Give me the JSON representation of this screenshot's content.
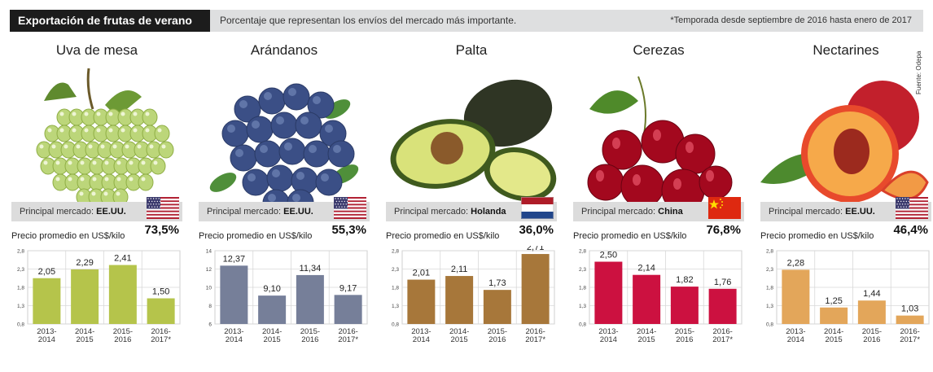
{
  "header": {
    "title": "Exportación de frutas de verano",
    "subtitle": "Porcentaje que representan los envíos del mercado más importante.",
    "note": "*Temporada desde septiembre de 2016 hasta enero de 2017"
  },
  "source_note": "Fuente: Odepa",
  "panels": [
    {
      "fruit": "Uva de mesa",
      "market_label": "Principal mercado:",
      "market": "EE.UU.",
      "flag": "usa-flag-icon",
      "share": "73,5%",
      "price_label": "Precio promedio en US$/kilo",
      "icon": "grapes-image",
      "color": "#b5c44b"
    },
    {
      "fruit": "Arándanos",
      "market_label": "Principal mercado:",
      "market": "EE.UU.",
      "flag": "usa-flag-icon",
      "share": "55,3%",
      "price_label": "Precio promedio en US$/kilo",
      "icon": "blueberries-image",
      "color": "#767f99"
    },
    {
      "fruit": "Palta",
      "market_label": "Principal mercado:",
      "market": "Holanda",
      "flag": "netherlands-flag-icon",
      "share": "36,0%",
      "price_label": "Precio promedio en US$/kilo",
      "icon": "avocado-image",
      "color": "#a7773a"
    },
    {
      "fruit": "Cerezas",
      "market_label": "Principal mercado:",
      "market": "China",
      "flag": "china-flag-icon",
      "share": "76,8%",
      "price_label": "Precio promedio en US$/kilo",
      "icon": "cherries-image",
      "color": "#cc1140"
    },
    {
      "fruit": "Nectarines",
      "market_label": "Principal mercado:",
      "market": "EE.UU.",
      "flag": "usa-flag-icon",
      "share": "46,4%",
      "price_label": "Precio promedio en US$/kilo",
      "icon": "nectarines-image",
      "color": "#e3a65a"
    }
  ],
  "chart_data": [
    {
      "type": "bar",
      "categories": [
        "2013-2014",
        "2014-2015",
        "2015-2016",
        "2016-2017*"
      ],
      "category_lines": [
        [
          "2013-",
          "2014"
        ],
        [
          "2014-",
          "2015"
        ],
        [
          "2015-",
          "2016"
        ],
        [
          "2016-",
          "2017*"
        ]
      ],
      "values": [
        2.05,
        2.29,
        2.41,
        1.5
      ],
      "value_labels": [
        "2,05",
        "2,29",
        "2,41",
        "1,50"
      ],
      "ylim": [
        0.8,
        2.8
      ],
      "yticks": [
        0.8,
        1.3,
        1.8,
        2.3,
        2.8
      ],
      "ytick_labels": [
        "0,8",
        "1,3",
        "1,8",
        "2,3",
        "2,8"
      ],
      "grid": true
    },
    {
      "type": "bar",
      "categories": [
        "2013-2014",
        "2014-2015",
        "2015-2016",
        "2016-2017*"
      ],
      "category_lines": [
        [
          "2013-",
          "2014"
        ],
        [
          "2014-",
          "2015"
        ],
        [
          "2015-",
          "2016"
        ],
        [
          "2016-",
          "2017*"
        ]
      ],
      "values": [
        12.37,
        9.1,
        11.34,
        9.17
      ],
      "value_labels": [
        "12,37",
        "9,10",
        "11,34",
        "9,17"
      ],
      "ylim": [
        6,
        14
      ],
      "yticks": [
        6,
        8,
        10,
        12,
        14
      ],
      "ytick_labels": [
        "6",
        "8",
        "10",
        "12",
        "14"
      ],
      "grid": true
    },
    {
      "type": "bar",
      "categories": [
        "2013-2014",
        "2014-2015",
        "2015-2016",
        "2016-2017*"
      ],
      "category_lines": [
        [
          "2013-",
          "2014"
        ],
        [
          "2014-",
          "2015"
        ],
        [
          "2015-",
          "2016"
        ],
        [
          "2016-",
          "2017*"
        ]
      ],
      "values": [
        2.01,
        2.11,
        1.73,
        2.71
      ],
      "value_labels": [
        "2,01",
        "2,11",
        "1,73",
        "2,71"
      ],
      "ylim": [
        0.8,
        2.8
      ],
      "yticks": [
        0.8,
        1.3,
        1.8,
        2.3,
        2.8
      ],
      "ytick_labels": [
        "0,8",
        "1,3",
        "1,8",
        "2,3",
        "2,8"
      ],
      "grid": true
    },
    {
      "type": "bar",
      "categories": [
        "2013-2014",
        "2014-2015",
        "2015-2016",
        "2016-2017*"
      ],
      "category_lines": [
        [
          "2013-",
          "2014"
        ],
        [
          "2014-",
          "2015"
        ],
        [
          "2015-",
          "2016"
        ],
        [
          "2016-",
          "2017*"
        ]
      ],
      "values": [
        2.5,
        2.14,
        1.82,
        1.76
      ],
      "value_labels": [
        "2,50",
        "2,14",
        "1,82",
        "1,76"
      ],
      "ylim": [
        0.8,
        2.8
      ],
      "yticks": [
        0.8,
        1.3,
        1.8,
        2.3,
        2.8
      ],
      "ytick_labels": [
        "0,8",
        "1,3",
        "1,8",
        "2,3",
        "2,8"
      ],
      "grid": true
    },
    {
      "type": "bar",
      "categories": [
        "2013-2014",
        "2014-2015",
        "2015-2016",
        "2016-2017*"
      ],
      "category_lines": [
        [
          "2013-",
          "2014"
        ],
        [
          "2014-",
          "2015"
        ],
        [
          "2015-",
          "2016"
        ],
        [
          "2016-",
          "2017*"
        ]
      ],
      "values": [
        2.28,
        1.25,
        1.44,
        1.03
      ],
      "value_labels": [
        "2,28",
        "1,25",
        "1,44",
        "1,03"
      ],
      "ylim": [
        0.8,
        2.8
      ],
      "yticks": [
        0.8,
        1.3,
        1.8,
        2.3,
        2.8
      ],
      "ytick_labels": [
        "0,8",
        "1,3",
        "1,8",
        "2,3",
        "2,8"
      ],
      "grid": true
    }
  ]
}
